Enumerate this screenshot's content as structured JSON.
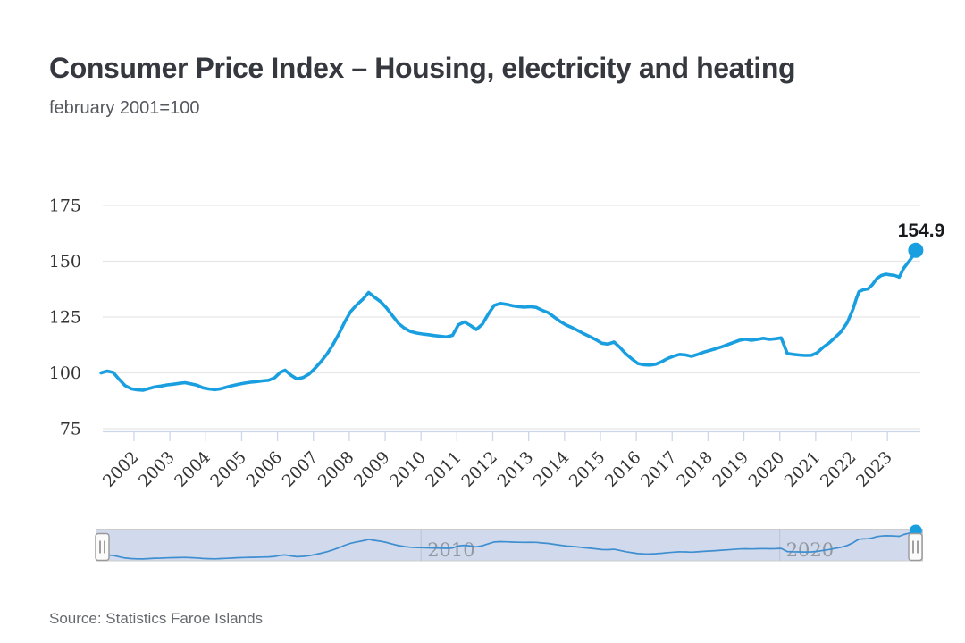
{
  "page": {
    "title": "Consumer Price Index – Housing, electricity and heating",
    "subtitle": "february 2001=100",
    "source": "Source: Statistics Faroe Islands"
  },
  "chart_data": {
    "type": "line",
    "title": "Consumer Price Index – Housing, electricity and heating",
    "subtitle": "february 2001=100",
    "xlabel": "",
    "ylabel": "",
    "x_range": [
      2001.08,
      2023.79
    ],
    "ylim": [
      73,
      186
    ],
    "yticks": [
      75,
      100,
      125,
      150,
      175
    ],
    "xticks": [
      2002,
      2003,
      2004,
      2005,
      2006,
      2007,
      2008,
      2009,
      2010,
      2011,
      2012,
      2013,
      2014,
      2015,
      2016,
      2017,
      2018,
      2019,
      2020,
      2021,
      2022,
      2023
    ],
    "grid": "horizontal",
    "legend": "none",
    "last_point_label": "154.9",
    "last_point": [
      2023.79,
      154.9
    ],
    "series": [
      {
        "name": "CPI Housing, electricity and heating",
        "points": [
          [
            2001.08,
            100
          ],
          [
            2001.25,
            100.8
          ],
          [
            2001.42,
            100.2
          ],
          [
            2001.58,
            97.2
          ],
          [
            2001.75,
            94.3
          ],
          [
            2001.92,
            92.9
          ],
          [
            2002.08,
            92.4
          ],
          [
            2002.25,
            92.2
          ],
          [
            2002.42,
            93
          ],
          [
            2002.58,
            93.7
          ],
          [
            2002.75,
            94.1
          ],
          [
            2002.92,
            94.6
          ],
          [
            2003.08,
            94.9
          ],
          [
            2003.25,
            95.3
          ],
          [
            2003.42,
            95.6
          ],
          [
            2003.58,
            95.1
          ],
          [
            2003.75,
            94.5
          ],
          [
            2003.92,
            93.3
          ],
          [
            2004.08,
            92.8
          ],
          [
            2004.25,
            92.5
          ],
          [
            2004.42,
            92.9
          ],
          [
            2004.58,
            93.6
          ],
          [
            2004.75,
            94.3
          ],
          [
            2004.92,
            94.9
          ],
          [
            2005.08,
            95.4
          ],
          [
            2005.25,
            95.8
          ],
          [
            2005.42,
            96.1
          ],
          [
            2005.58,
            96.4
          ],
          [
            2005.75,
            96.7
          ],
          [
            2005.92,
            97.8
          ],
          [
            2006.08,
            100.3
          ],
          [
            2006.21,
            101.2
          ],
          [
            2006.38,
            98.9
          ],
          [
            2006.54,
            97.3
          ],
          [
            2006.71,
            97.9
          ],
          [
            2006.88,
            99.5
          ],
          [
            2007.04,
            102
          ],
          [
            2007.21,
            105
          ],
          [
            2007.38,
            108.5
          ],
          [
            2007.54,
            112.5
          ],
          [
            2007.71,
            117.5
          ],
          [
            2007.88,
            123
          ],
          [
            2008.04,
            127.5
          ],
          [
            2008.21,
            130.5
          ],
          [
            2008.38,
            133
          ],
          [
            2008.54,
            136
          ],
          [
            2008.71,
            133.8
          ],
          [
            2008.88,
            131.8
          ],
          [
            2009.04,
            129
          ],
          [
            2009.21,
            125.5
          ],
          [
            2009.38,
            122
          ],
          [
            2009.54,
            120
          ],
          [
            2009.71,
            118.5
          ],
          [
            2009.88,
            117.8
          ],
          [
            2010.04,
            117.4
          ],
          [
            2010.21,
            117.1
          ],
          [
            2010.38,
            116.7
          ],
          [
            2010.54,
            116.4
          ],
          [
            2010.71,
            116.1
          ],
          [
            2010.88,
            116.8
          ],
          [
            2011.04,
            121.5
          ],
          [
            2011.21,
            122.8
          ],
          [
            2011.38,
            121.2
          ],
          [
            2011.54,
            119.4
          ],
          [
            2011.71,
            121.8
          ],
          [
            2011.88,
            126.5
          ],
          [
            2012.04,
            130.2
          ],
          [
            2012.21,
            131.1
          ],
          [
            2012.38,
            130.7
          ],
          [
            2012.54,
            130.1
          ],
          [
            2012.71,
            129.7
          ],
          [
            2012.88,
            129.4
          ],
          [
            2013.04,
            129.6
          ],
          [
            2013.21,
            129.3
          ],
          [
            2013.38,
            128
          ],
          [
            2013.54,
            127
          ],
          [
            2013.71,
            125
          ],
          [
            2013.88,
            123
          ],
          [
            2014.04,
            121.5
          ],
          [
            2014.21,
            120.3
          ],
          [
            2014.38,
            118.9
          ],
          [
            2014.54,
            117.5
          ],
          [
            2014.71,
            116.2
          ],
          [
            2014.88,
            114.8
          ],
          [
            2015.04,
            113.3
          ],
          [
            2015.21,
            112.9
          ],
          [
            2015.38,
            113.8
          ],
          [
            2015.54,
            111.5
          ],
          [
            2015.71,
            108.5
          ],
          [
            2015.88,
            106.2
          ],
          [
            2016.04,
            104.2
          ],
          [
            2016.21,
            103.6
          ],
          [
            2016.38,
            103.5
          ],
          [
            2016.54,
            103.9
          ],
          [
            2016.71,
            105
          ],
          [
            2016.88,
            106.5
          ],
          [
            2017.04,
            107.5
          ],
          [
            2017.21,
            108.3
          ],
          [
            2017.38,
            108
          ],
          [
            2017.54,
            107.4
          ],
          [
            2017.71,
            108.3
          ],
          [
            2017.88,
            109.3
          ],
          [
            2018.04,
            110
          ],
          [
            2018.21,
            110.8
          ],
          [
            2018.38,
            111.7
          ],
          [
            2018.54,
            112.6
          ],
          [
            2018.71,
            113.6
          ],
          [
            2018.88,
            114.6
          ],
          [
            2019.04,
            115.1
          ],
          [
            2019.21,
            114.6
          ],
          [
            2019.38,
            115
          ],
          [
            2019.54,
            115.5
          ],
          [
            2019.71,
            115
          ],
          [
            2019.88,
            115.3
          ],
          [
            2020.04,
            115.7
          ],
          [
            2020.21,
            108.7
          ],
          [
            2020.38,
            108.3
          ],
          [
            2020.54,
            108
          ],
          [
            2020.71,
            107.8
          ],
          [
            2020.88,
            107.9
          ],
          [
            2021.04,
            109
          ],
          [
            2021.21,
            111.5
          ],
          [
            2021.38,
            113.5
          ],
          [
            2021.54,
            115.8
          ],
          [
            2021.71,
            118.5
          ],
          [
            2021.88,
            122.5
          ],
          [
            2022.04,
            128.5
          ],
          [
            2022.13,
            133
          ],
          [
            2022.21,
            136.4
          ],
          [
            2022.33,
            137.2
          ],
          [
            2022.46,
            137.6
          ],
          [
            2022.58,
            139.5
          ],
          [
            2022.71,
            142.3
          ],
          [
            2022.83,
            143.6
          ],
          [
            2022.96,
            144.2
          ],
          [
            2023.08,
            143.9
          ],
          [
            2023.21,
            143.6
          ],
          [
            2023.33,
            142.9
          ],
          [
            2023.46,
            147
          ],
          [
            2023.58,
            149.5
          ],
          [
            2023.71,
            152.3
          ],
          [
            2023.79,
            154.9
          ]
        ]
      }
    ],
    "navigator": {
      "selected_range": "full",
      "tick_years": [
        2010,
        2020
      ],
      "tick_labels": [
        "2010",
        "2020"
      ],
      "handles": [
        "left",
        "right"
      ]
    },
    "colors": {
      "line": "#199fe0",
      "marker": "#199fe0",
      "grid": "#e6e6e6",
      "axis_line": "#ccd6eb",
      "tick_text": "#333333",
      "nav_mask": "#d1daec",
      "nav_outline": "#cccccc",
      "nav_line": "#3e8ed0",
      "nav_label": "#93979e",
      "nav_gridline": "#aab0ba"
    }
  }
}
